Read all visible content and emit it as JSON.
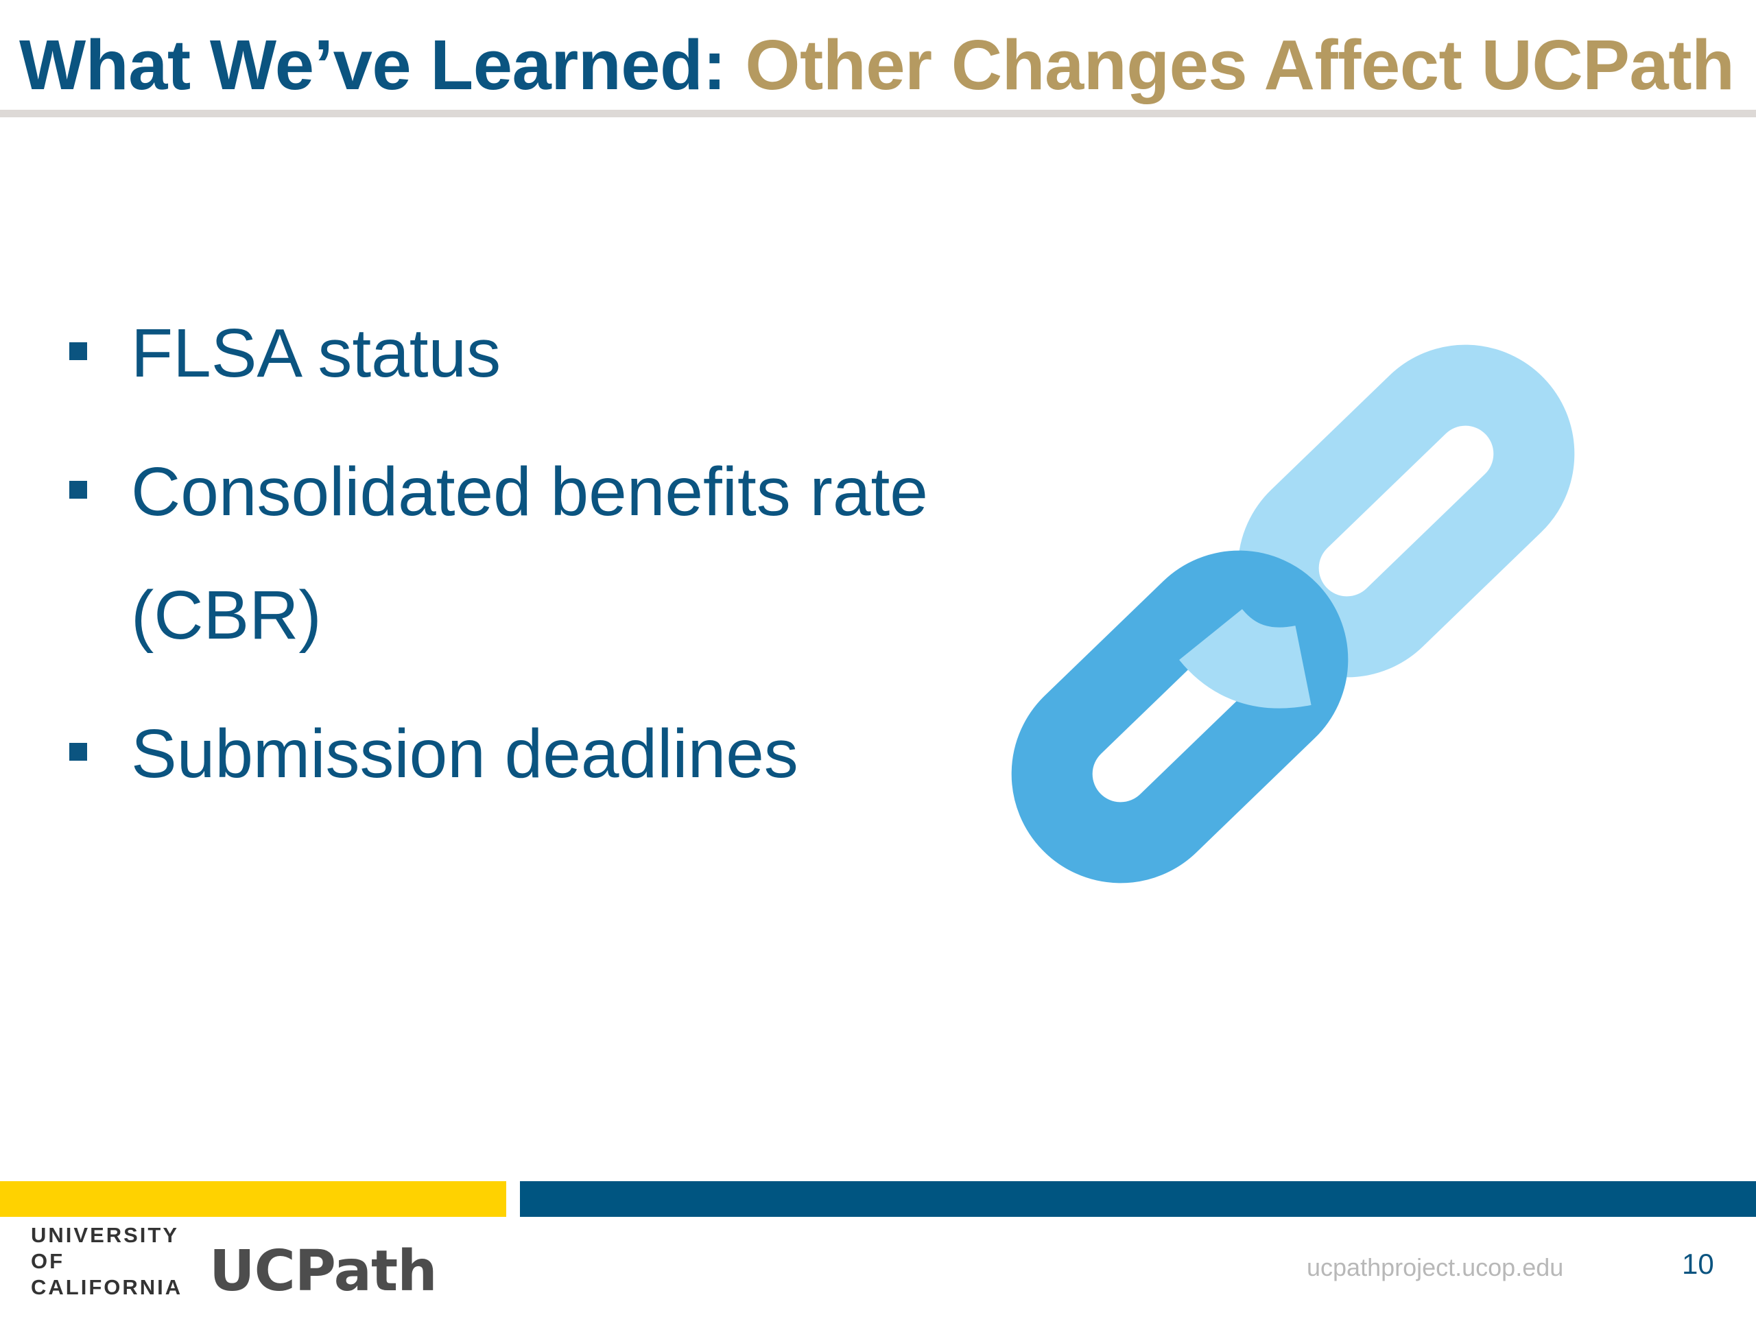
{
  "slide": {
    "title_part1": "What We’ve Learned:",
    "title_part2": "Other Changes Affect UCPath",
    "bullets": [
      {
        "line1": "FLSA status",
        "line2": ""
      },
      {
        "line1": "Consolidated benefits rate",
        "line2": "(CBR)"
      },
      {
        "line1": "Submission deadlines",
        "line2": ""
      }
    ]
  },
  "illustration": {
    "icon": "chain-link-icon",
    "colors": {
      "front_link": "#4daee2",
      "back_link": "#a6dcf6"
    }
  },
  "footer": {
    "org_line1": "UNIVERSITY",
    "org_line2": "OF",
    "org_line3": "CALIFORNIA",
    "product_logo": "UCPath",
    "url": "ucpathproject.ucop.edu",
    "page_number": "10"
  },
  "colors": {
    "title_blue": "#0b5480",
    "title_gold": "#b59a61",
    "bar_gold": "#ffd200",
    "bar_blue": "#005581"
  }
}
